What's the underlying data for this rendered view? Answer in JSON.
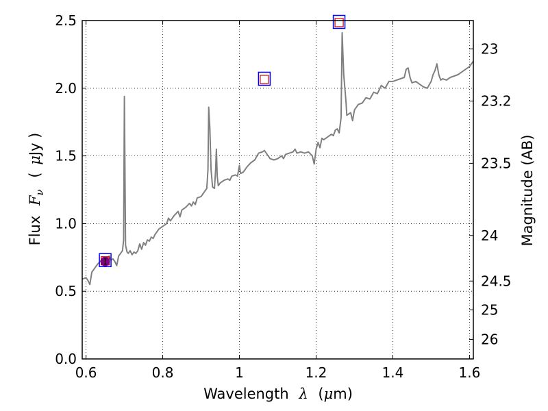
{
  "chart_data": {
    "type": "line",
    "title": "",
    "xlabel": {
      "prefix": "Wavelength",
      "symbol": "λ",
      "unit_open": "(",
      "unit_mu": "μ",
      "unit_rest": "m)"
    },
    "ylabel": {
      "prefix": "Flux",
      "symbol": "F",
      "sub": "ν",
      "unit_open": "(",
      "unit_mu": "μ",
      "unit_rest": "Jy )"
    },
    "y2label": "Magnitude (AB)",
    "xlim": [
      0.59,
      1.61
    ],
    "ylim": [
      0.0,
      2.5
    ],
    "grid": true,
    "x_ticks": [
      {
        "value": 0.6,
        "label": "0.6"
      },
      {
        "value": 0.8,
        "label": "0.8"
      },
      {
        "value": 1.0,
        "label": "1"
      },
      {
        "value": 1.2,
        "label": "1.2"
      },
      {
        "value": 1.4,
        "label": "1.4"
      },
      {
        "value": 1.6,
        "label": "1.6"
      }
    ],
    "y_ticks": [
      {
        "value": 0.0,
        "label": "0.0"
      },
      {
        "value": 0.5,
        "label": "0.5"
      },
      {
        "value": 1.0,
        "label": "1.0"
      },
      {
        "value": 1.5,
        "label": "1.5"
      },
      {
        "value": 2.0,
        "label": "2.0"
      },
      {
        "value": 2.5,
        "label": "2.5"
      }
    ],
    "y2_ticks": [
      {
        "value": 23,
        "label": "23"
      },
      {
        "value": 23.2,
        "label": "23.2"
      },
      {
        "value": 23.5,
        "label": "23.5"
      },
      {
        "value": 24,
        "label": "24"
      },
      {
        "value": 24.5,
        "label": "24.5"
      },
      {
        "value": 25,
        "label": "25"
      },
      {
        "value": 26,
        "label": "26"
      }
    ],
    "series": [
      {
        "color": "#808080",
        "points": [
          [
            0.59,
            0.59
          ],
          [
            0.6,
            0.6
          ],
          [
            0.605,
            0.58
          ],
          [
            0.61,
            0.55
          ],
          [
            0.615,
            0.64
          ],
          [
            0.62,
            0.66
          ],
          [
            0.63,
            0.7
          ],
          [
            0.64,
            0.73
          ],
          [
            0.65,
            0.72
          ],
          [
            0.655,
            0.74
          ],
          [
            0.66,
            0.76
          ],
          [
            0.665,
            0.73
          ],
          [
            0.67,
            0.74
          ],
          [
            0.675,
            0.72
          ],
          [
            0.68,
            0.69
          ],
          [
            0.685,
            0.76
          ],
          [
            0.69,
            0.78
          ],
          [
            0.695,
            0.8
          ],
          [
            0.698,
            0.88
          ],
          [
            0.7,
            1.94
          ],
          [
            0.703,
            0.84
          ],
          [
            0.707,
            0.79
          ],
          [
            0.71,
            0.78
          ],
          [
            0.715,
            0.8
          ],
          [
            0.72,
            0.77
          ],
          [
            0.725,
            0.79
          ],
          [
            0.73,
            0.78
          ],
          [
            0.735,
            0.8
          ],
          [
            0.74,
            0.85
          ],
          [
            0.745,
            0.81
          ],
          [
            0.75,
            0.86
          ],
          [
            0.755,
            0.84
          ],
          [
            0.76,
            0.88
          ],
          [
            0.765,
            0.87
          ],
          [
            0.77,
            0.9
          ],
          [
            0.775,
            0.89
          ],
          [
            0.78,
            0.92
          ],
          [
            0.79,
            0.96
          ],
          [
            0.8,
            0.98
          ],
          [
            0.81,
            1.0
          ],
          [
            0.815,
            1.04
          ],
          [
            0.82,
            1.02
          ],
          [
            0.83,
            1.06
          ],
          [
            0.84,
            1.09
          ],
          [
            0.845,
            1.05
          ],
          [
            0.85,
            1.1
          ],
          [
            0.86,
            1.12
          ],
          [
            0.87,
            1.15
          ],
          [
            0.875,
            1.13
          ],
          [
            0.88,
            1.16
          ],
          [
            0.885,
            1.14
          ],
          [
            0.89,
            1.19
          ],
          [
            0.9,
            1.2
          ],
          [
            0.905,
            1.22
          ],
          [
            0.91,
            1.24
          ],
          [
            0.915,
            1.26
          ],
          [
            0.918,
            1.4
          ],
          [
            0.92,
            1.86
          ],
          [
            0.923,
            1.7
          ],
          [
            0.926,
            1.4
          ],
          [
            0.93,
            1.27
          ],
          [
            0.935,
            1.26
          ],
          [
            0.938,
            1.4
          ],
          [
            0.94,
            1.55
          ],
          [
            0.942,
            1.35
          ],
          [
            0.945,
            1.28
          ],
          [
            0.95,
            1.3
          ],
          [
            0.96,
            1.32
          ],
          [
            0.97,
            1.33
          ],
          [
            0.975,
            1.32
          ],
          [
            0.98,
            1.35
          ],
          [
            0.99,
            1.36
          ],
          [
            0.995,
            1.35
          ],
          [
            1.0,
            1.43
          ],
          [
            1.003,
            1.37
          ],
          [
            1.01,
            1.38
          ],
          [
            1.02,
            1.42
          ],
          [
            1.03,
            1.45
          ],
          [
            1.04,
            1.47
          ],
          [
            1.05,
            1.52
          ],
          [
            1.06,
            1.53
          ],
          [
            1.065,
            1.54
          ],
          [
            1.07,
            1.52
          ],
          [
            1.075,
            1.5
          ],
          [
            1.08,
            1.48
          ],
          [
            1.09,
            1.47
          ],
          [
            1.1,
            1.48
          ],
          [
            1.11,
            1.5
          ],
          [
            1.115,
            1.48
          ],
          [
            1.12,
            1.51
          ],
          [
            1.13,
            1.52
          ],
          [
            1.14,
            1.53
          ],
          [
            1.145,
            1.55
          ],
          [
            1.15,
            1.52
          ],
          [
            1.16,
            1.53
          ],
          [
            1.17,
            1.52
          ],
          [
            1.18,
            1.53
          ],
          [
            1.19,
            1.5
          ],
          [
            1.195,
            1.44
          ],
          [
            1.2,
            1.55
          ],
          [
            1.205,
            1.6
          ],
          [
            1.21,
            1.56
          ],
          [
            1.215,
            1.63
          ],
          [
            1.22,
            1.62
          ],
          [
            1.23,
            1.64
          ],
          [
            1.24,
            1.66
          ],
          [
            1.245,
            1.65
          ],
          [
            1.25,
            1.69
          ],
          [
            1.255,
            1.7
          ],
          [
            1.26,
            1.67
          ],
          [
            1.265,
            1.78
          ],
          [
            1.268,
            2.41
          ],
          [
            1.272,
            2.1
          ],
          [
            1.278,
            1.9
          ],
          [
            1.28,
            1.8
          ],
          [
            1.29,
            1.82
          ],
          [
            1.295,
            1.76
          ],
          [
            1.3,
            1.84
          ],
          [
            1.31,
            1.88
          ],
          [
            1.32,
            1.89
          ],
          [
            1.33,
            1.93
          ],
          [
            1.34,
            1.92
          ],
          [
            1.35,
            1.97
          ],
          [
            1.36,
            1.96
          ],
          [
            1.37,
            2.02
          ],
          [
            1.38,
            2.0
          ],
          [
            1.39,
            2.05
          ],
          [
            1.4,
            2.05
          ],
          [
            1.41,
            2.06
          ],
          [
            1.42,
            2.07
          ],
          [
            1.43,
            2.08
          ],
          [
            1.435,
            2.14
          ],
          [
            1.44,
            2.15
          ],
          [
            1.445,
            2.08
          ],
          [
            1.45,
            2.04
          ],
          [
            1.46,
            2.05
          ],
          [
            1.47,
            2.03
          ],
          [
            1.48,
            2.01
          ],
          [
            1.49,
            2.0
          ],
          [
            1.5,
            2.05
          ],
          [
            1.505,
            2.1
          ],
          [
            1.51,
            2.13
          ],
          [
            1.515,
            2.18
          ],
          [
            1.52,
            2.1
          ],
          [
            1.525,
            2.06
          ],
          [
            1.53,
            2.07
          ],
          [
            1.54,
            2.06
          ],
          [
            1.55,
            2.08
          ],
          [
            1.56,
            2.09
          ],
          [
            1.57,
            2.1
          ],
          [
            1.58,
            2.12
          ],
          [
            1.59,
            2.14
          ],
          [
            1.6,
            2.16
          ],
          [
            1.61,
            2.2
          ]
        ]
      }
    ],
    "photometry": [
      {
        "x": 0.65,
        "y": 0.73,
        "outer_color": "#0000ff",
        "inner_color": "#cc0000"
      },
      {
        "x": 1.065,
        "y": 2.07,
        "outer_color": "#0000ff",
        "inner_color": "#cc0000"
      },
      {
        "x": 1.26,
        "y": 2.49,
        "outer_color": "#0000ff",
        "inner_color": "#cc0000"
      }
    ],
    "measured_point": {
      "x": 0.65,
      "y": 0.72,
      "color": "#800080"
    }
  }
}
